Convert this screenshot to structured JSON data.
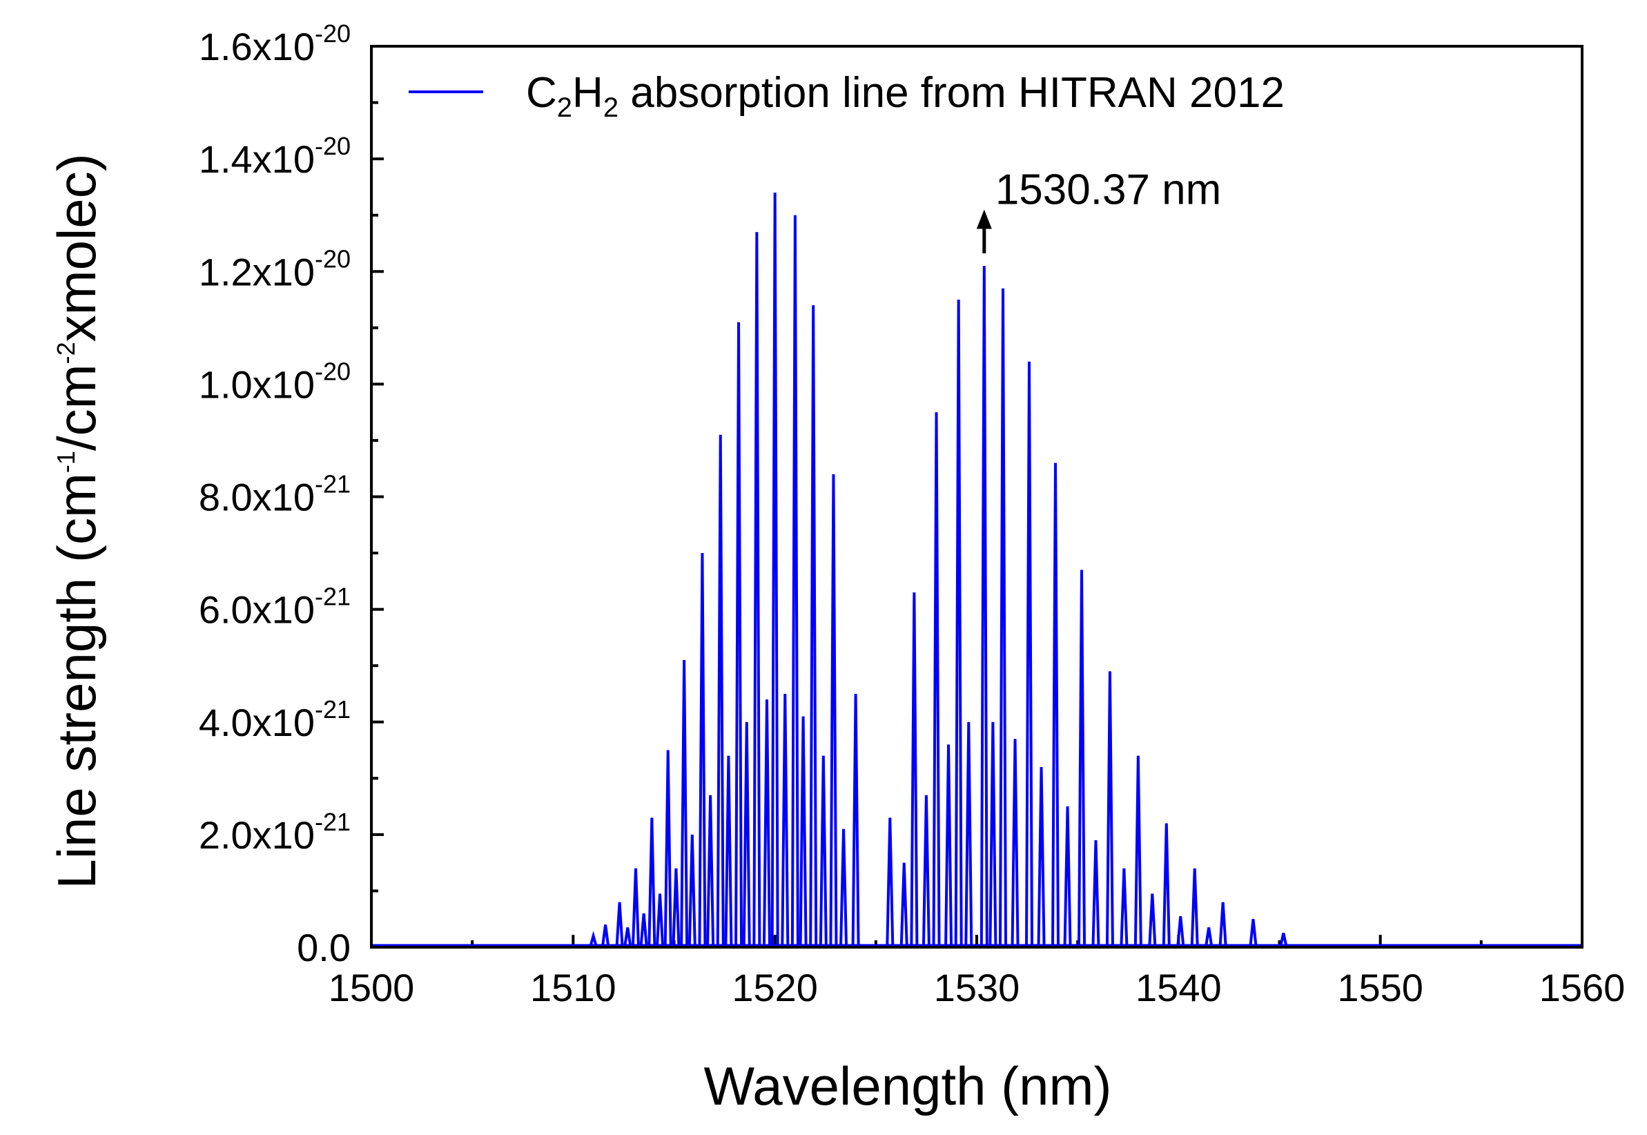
{
  "chart_data": {
    "type": "line",
    "title": "",
    "xlabel": "Wavelength (nm)",
    "ylabel": {
      "prefix": "Line strength (cm",
      "sup1": "-1",
      "mid": "/cm",
      "sup2": "-2",
      "suffix": "xmolec)"
    },
    "xlim": [
      1500,
      1560
    ],
    "ylim": [
      0,
      1.6e-20
    ],
    "x_ticks": [
      {
        "value": 1500,
        "label": "1500"
      },
      {
        "value": 1510,
        "label": "1510"
      },
      {
        "value": 1520,
        "label": "1520"
      },
      {
        "value": 1530,
        "label": "1530"
      },
      {
        "value": 1540,
        "label": "1540"
      },
      {
        "value": 1550,
        "label": "1550"
      },
      {
        "value": 1560,
        "label": "1560"
      }
    ],
    "y_ticks": [
      {
        "value": 0,
        "mantissa": "0.0",
        "exponent": ""
      },
      {
        "value": 2e-21,
        "mantissa": "2.0x10",
        "exponent": "-21"
      },
      {
        "value": 4e-21,
        "mantissa": "4.0x10",
        "exponent": "-21"
      },
      {
        "value": 6e-21,
        "mantissa": "6.0x10",
        "exponent": "-21"
      },
      {
        "value": 8e-21,
        "mantissa": "8.0x10",
        "exponent": "-21"
      },
      {
        "value": 1e-20,
        "mantissa": "1.0x10",
        "exponent": "-20"
      },
      {
        "value": 1.2e-20,
        "mantissa": "1.2x10",
        "exponent": "-20"
      },
      {
        "value": 1.4e-20,
        "mantissa": "1.4x10",
        "exponent": "-20"
      },
      {
        "value": 1.6e-20,
        "mantissa": "1.6x10",
        "exponent": "-20"
      }
    ],
    "legend": {
      "position": "top-left",
      "parts": [
        {
          "text": "C",
          "sub": false
        },
        {
          "text": "2",
          "sub": true
        },
        {
          "text": "H",
          "sub": false
        },
        {
          "text": "2",
          "sub": true
        },
        {
          "text": " absorption line from HITRAN 2012",
          "sub": false
        }
      ]
    },
    "annotation": {
      "text": "1530.37 nm",
      "x": 1530.37,
      "y_from": 1.22e-20,
      "y_to": 1.31e-20
    },
    "line_color": "#0000ff",
    "series": [
      {
        "name": "C2H2 absorption line from HITRAN 2012",
        "main_lines": [
          {
            "x": 1512.3,
            "y": 8e-22
          },
          {
            "x": 1513.1,
            "y": 1.4e-21
          },
          {
            "x": 1513.9,
            "y": 2.3e-21
          },
          {
            "x": 1514.7,
            "y": 3.5e-21
          },
          {
            "x": 1515.5,
            "y": 5.1e-21
          },
          {
            "x": 1516.4,
            "y": 7e-21
          },
          {
            "x": 1517.3,
            "y": 9.1e-21
          },
          {
            "x": 1518.2,
            "y": 1.11e-20
          },
          {
            "x": 1519.1,
            "y": 1.27e-20
          },
          {
            "x": 1520.0,
            "y": 1.34e-20
          },
          {
            "x": 1521.0,
            "y": 1.3e-20
          },
          {
            "x": 1521.9,
            "y": 1.14e-20
          },
          {
            "x": 1522.9,
            "y": 8.4e-21
          },
          {
            "x": 1524.0,
            "y": 4.5e-21
          },
          {
            "x": 1526.9,
            "y": 6.3e-21
          },
          {
            "x": 1528.0,
            "y": 9.5e-21
          },
          {
            "x": 1529.1,
            "y": 1.15e-20
          },
          {
            "x": 1530.37,
            "y": 1.21e-20
          },
          {
            "x": 1531.3,
            "y": 1.17e-20
          },
          {
            "x": 1532.6,
            "y": 1.04e-20
          },
          {
            "x": 1533.9,
            "y": 8.6e-21
          },
          {
            "x": 1535.2,
            "y": 6.7e-21
          },
          {
            "x": 1536.6,
            "y": 4.9e-21
          },
          {
            "x": 1538.0,
            "y": 3.4e-21
          },
          {
            "x": 1539.4,
            "y": 2.2e-21
          },
          {
            "x": 1540.8,
            "y": 1.4e-21
          },
          {
            "x": 1542.2,
            "y": 8e-22
          },
          {
            "x": 1543.7,
            "y": 5e-22
          },
          {
            "x": 1545.2,
            "y": 2.5e-22
          }
        ],
        "secondary_lines": [
          {
            "x": 1511.0,
            "y": 2e-22
          },
          {
            "x": 1511.6,
            "y": 4e-22
          },
          {
            "x": 1512.7,
            "y": 3.5e-22
          },
          {
            "x": 1513.5,
            "y": 6e-22
          },
          {
            "x": 1514.3,
            "y": 9.5e-22
          },
          {
            "x": 1515.1,
            "y": 1.4e-21
          },
          {
            "x": 1515.9,
            "y": 2e-21
          },
          {
            "x": 1516.8,
            "y": 2.7e-21
          },
          {
            "x": 1517.7,
            "y": 3.4e-21
          },
          {
            "x": 1518.6,
            "y": 4e-21
          },
          {
            "x": 1519.6,
            "y": 4.4e-21
          },
          {
            "x": 1520.5,
            "y": 4.5e-21
          },
          {
            "x": 1521.4,
            "y": 4.1e-21
          },
          {
            "x": 1522.4,
            "y": 3.4e-21
          },
          {
            "x": 1523.4,
            "y": 2.1e-21
          },
          {
            "x": 1525.7,
            "y": 2.3e-21
          },
          {
            "x": 1526.4,
            "y": 1.5e-21
          },
          {
            "x": 1527.5,
            "y": 2.7e-21
          },
          {
            "x": 1528.6,
            "y": 3.6e-21
          },
          {
            "x": 1529.6,
            "y": 4e-21
          },
          {
            "x": 1530.8,
            "y": 4e-21
          },
          {
            "x": 1531.9,
            "y": 3.7e-21
          },
          {
            "x": 1533.2,
            "y": 3.2e-21
          },
          {
            "x": 1534.5,
            "y": 2.5e-21
          },
          {
            "x": 1535.9,
            "y": 1.9e-21
          },
          {
            "x": 1537.3,
            "y": 1.4e-21
          },
          {
            "x": 1538.7,
            "y": 9.5e-22
          },
          {
            "x": 1540.1,
            "y": 5.5e-22
          },
          {
            "x": 1541.5,
            "y": 3.5e-22
          }
        ]
      }
    ]
  }
}
